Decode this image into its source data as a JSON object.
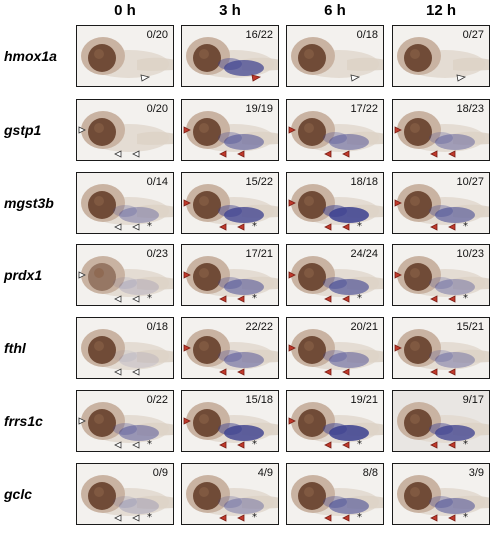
{
  "columns": [
    "0 h",
    "3 h",
    "6 h",
    "12 h"
  ],
  "rows": [
    {
      "gene": "hmox1a",
      "counts": [
        "0/20",
        "16/22",
        "0/18",
        "0/27"
      ]
    },
    {
      "gene": "gstp1",
      "counts": [
        "0/20",
        "19/19",
        "17/22",
        "18/23"
      ]
    },
    {
      "gene": "mgst3b",
      "counts": [
        "0/14",
        "15/22",
        "18/18",
        "10/27"
      ]
    },
    {
      "gene": "prdx1",
      "counts": [
        "0/23",
        "17/21",
        "24/24",
        "10/23"
      ]
    },
    {
      "gene": "fthl",
      "counts": [
        "0/18",
        "22/22",
        "20/21",
        "15/21"
      ]
    },
    {
      "gene": "frrs1c",
      "counts": [
        "0/22",
        "15/18",
        "19/21",
        "9/17"
      ]
    },
    {
      "gene": "gclc",
      "counts": [
        "0/9",
        "4/9",
        "8/8",
        "3/9"
      ]
    }
  ],
  "star_symbol": "*",
  "colors": {
    "red_arrowhead": "#c0392b",
    "white_arrowhead": "#ffffff",
    "stain": "#3b3f8f",
    "eye": "#6b4632",
    "background_panel": "#f3f1ee"
  }
}
